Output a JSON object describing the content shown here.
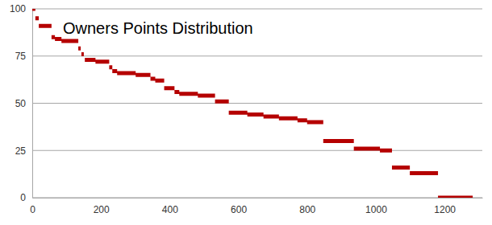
{
  "chart_data": {
    "type": "line",
    "title": "Owners Points Distribution",
    "x": [
      0,
      9,
      null,
      9,
      19,
      null,
      19,
      56,
      null,
      56,
      66,
      null,
      66,
      85,
      null,
      85,
      134,
      null,
      134,
      141,
      null,
      143,
      150,
      null,
      153,
      184,
      null,
      184,
      224,
      null,
      224,
      233,
      null,
      233,
      247,
      null,
      247,
      301,
      null,
      301,
      344,
      null,
      344,
      358,
      null,
      358,
      384,
      null,
      384,
      414,
      null,
      414,
      428,
      null,
      428,
      482,
      null,
      482,
      532,
      null,
      532,
      572,
      null,
      572,
      626,
      null,
      626,
      673,
      null,
      673,
      718,
      null,
      718,
      772,
      null,
      772,
      800,
      null,
      800,
      847,
      null,
      847,
      936,
      null,
      936,
      1012,
      null,
      1012,
      1047,
      null,
      1047,
      1099,
      null,
      1099,
      1181,
      null,
      1181,
      1282
    ],
    "values": [
      100,
      100,
      null,
      95,
      95,
      null,
      91,
      91,
      null,
      85,
      85,
      null,
      84,
      84,
      null,
      83,
      83,
      null,
      79,
      79,
      null,
      76,
      76,
      null,
      73,
      73,
      null,
      72,
      72,
      null,
      69,
      69,
      null,
      67,
      67,
      null,
      66,
      66,
      null,
      65,
      65,
      null,
      63,
      63,
      null,
      62,
      62,
      null,
      58,
      58,
      null,
      56,
      56,
      null,
      55,
      55,
      null,
      54,
      54,
      null,
      51,
      51,
      null,
      45,
      45,
      null,
      44,
      44,
      null,
      43,
      43,
      null,
      42,
      42,
      null,
      41,
      41,
      null,
      40,
      40,
      null,
      30,
      30,
      null,
      26,
      26,
      null,
      25,
      25,
      null,
      16,
      16,
      null,
      13,
      13,
      null,
      0,
      0
    ],
    "color": "#b50000",
    "line_style": "solid",
    "xlim": [
      0,
      1310
    ],
    "xticks": [
      0,
      200,
      400,
      600,
      800,
      1000,
      1200
    ],
    "ylim": [
      0,
      100
    ],
    "yticks": [
      0,
      25,
      50,
      75,
      100
    ],
    "grid": true
  }
}
